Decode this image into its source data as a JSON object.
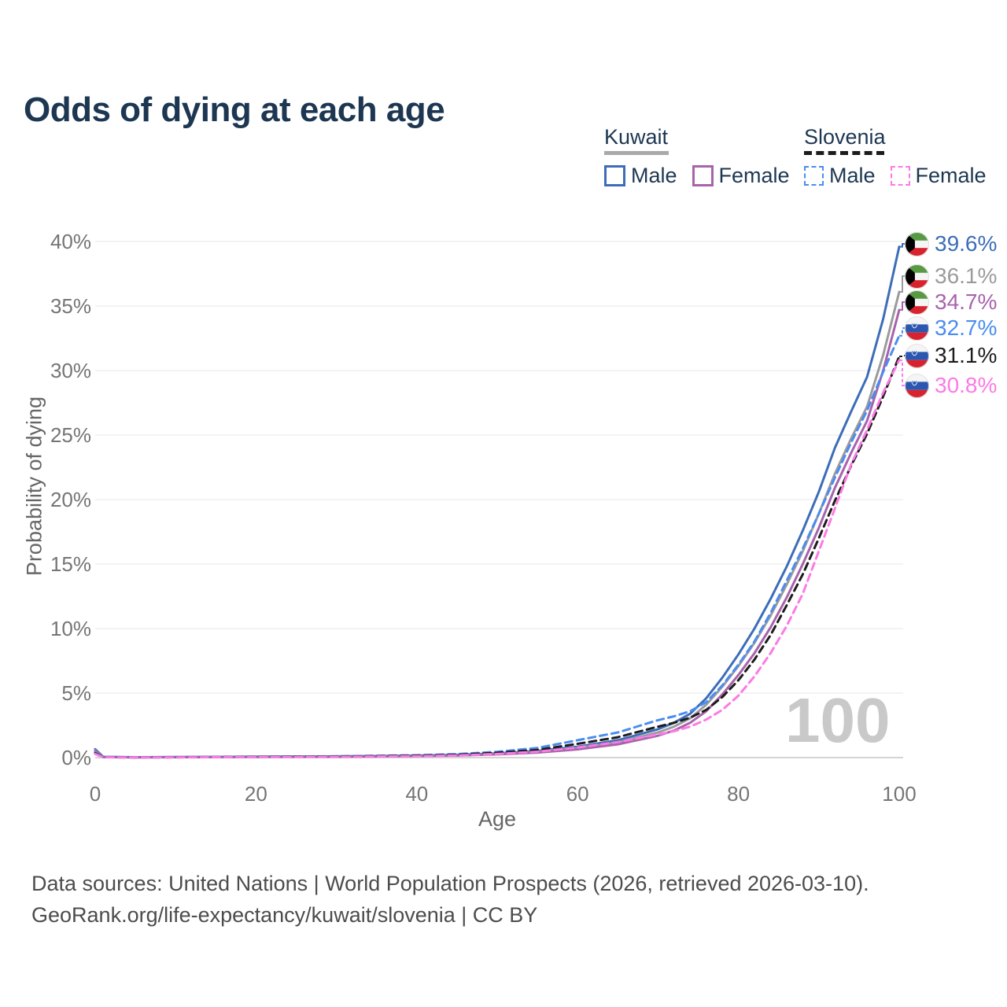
{
  "title": "Odds of dying at each age",
  "watermark": "100",
  "legend": {
    "groups": [
      {
        "country": "Kuwait",
        "line_style": "solid",
        "underline_color": "#a9a9a9",
        "items": [
          {
            "label": "Male",
            "color": "#3d6db8"
          },
          {
            "label": "Female",
            "color": "#a763ab"
          }
        ]
      },
      {
        "country": "Slovenia",
        "line_style": "dashed",
        "underline_color": "#1c1c1c",
        "items": [
          {
            "label": "Male",
            "color": "#4a8cf0"
          },
          {
            "label": "Female",
            "color": "#fc7ae4"
          }
        ]
      }
    ]
  },
  "chart_data": {
    "type": "line",
    "title": "Odds of dying at each age",
    "xlabel": "Age",
    "ylabel": "Probability of dying",
    "xlim": [
      0,
      100
    ],
    "ylim": [
      0,
      40
    ],
    "grid": "horizontal",
    "xticks": [
      {
        "value": 0,
        "label": "0"
      },
      {
        "value": 20,
        "label": "20"
      },
      {
        "value": 40,
        "label": "40"
      },
      {
        "value": 60,
        "label": "60"
      },
      {
        "value": 80,
        "label": "80"
      },
      {
        "value": 100,
        "label": "100"
      }
    ],
    "yticks": [
      {
        "value": 0,
        "label": "0%"
      },
      {
        "value": 5,
        "label": "5%"
      },
      {
        "value": 10,
        "label": "10%"
      },
      {
        "value": 15,
        "label": "15%"
      },
      {
        "value": 20,
        "label": "20%"
      },
      {
        "value": 25,
        "label": "25%"
      },
      {
        "value": 30,
        "label": "30%"
      },
      {
        "value": 35,
        "label": "35%"
      },
      {
        "value": 40,
        "label": "40%"
      }
    ],
    "x": [
      0,
      1,
      5,
      10,
      20,
      30,
      40,
      45,
      50,
      55,
      60,
      65,
      70,
      72,
      74,
      76,
      78,
      80,
      82,
      84,
      86,
      88,
      90,
      92,
      94,
      96,
      98,
      100
    ],
    "series": [
      {
        "id": "kuwait-male",
        "name": "Kuwait Male",
        "country": "Kuwait",
        "sex": "Male",
        "color": "#3d6db8",
        "dashed": false,
        "flag": "kuwait",
        "end_label": "39.6%",
        "end_value": 39.6,
        "values": [
          0.65,
          0.06,
          0.03,
          0.04,
          0.08,
          0.1,
          0.16,
          0.22,
          0.33,
          0.52,
          0.85,
          1.35,
          2.2,
          2.7,
          3.4,
          4.6,
          6.2,
          8.0,
          10.0,
          12.3,
          14.8,
          17.6,
          20.6,
          24.0,
          26.8,
          29.5,
          34.0,
          39.6
        ]
      },
      {
        "id": "kuwait-both",
        "name": "Kuwait",
        "country": "Kuwait",
        "sex": "Both",
        "color": "#9b9b9b",
        "dashed": false,
        "flag": "kuwait",
        "end_label": "36.1%",
        "end_value": 36.1,
        "values": [
          0.55,
          0.05,
          0.025,
          0.035,
          0.065,
          0.085,
          0.14,
          0.19,
          0.29,
          0.45,
          0.74,
          1.18,
          1.95,
          2.4,
          3.05,
          4.1,
          5.5,
          7.1,
          8.9,
          11.0,
          13.4,
          16.0,
          18.9,
          22.0,
          24.7,
          27.2,
          31.2,
          36.1
        ]
      },
      {
        "id": "kuwait-female",
        "name": "Kuwait Female",
        "country": "Kuwait",
        "sex": "Female",
        "color": "#a763ab",
        "dashed": false,
        "flag": "kuwait",
        "end_label": "34.7%",
        "end_value": 34.7,
        "values": [
          0.5,
          0.045,
          0.02,
          0.03,
          0.055,
          0.07,
          0.12,
          0.16,
          0.25,
          0.39,
          0.64,
          1.03,
          1.7,
          2.1,
          2.7,
          3.6,
          4.9,
          6.4,
          8.1,
          10.1,
          12.4,
          15.0,
          17.8,
          20.9,
          23.6,
          26.1,
          30.0,
          34.7
        ]
      },
      {
        "id": "slovenia-male",
        "name": "Slovenia Male",
        "country": "Slovenia",
        "sex": "Male",
        "color": "#4a8cf0",
        "dashed": true,
        "flag": "slovenia",
        "end_label": "32.7%",
        "end_value": 32.7,
        "values": [
          0.4,
          0.035,
          0.02,
          0.03,
          0.07,
          0.1,
          0.18,
          0.27,
          0.45,
          0.75,
          1.35,
          1.95,
          2.9,
          3.2,
          3.6,
          4.3,
          5.6,
          7.2,
          9.0,
          11.2,
          13.7,
          16.2,
          18.9,
          21.7,
          24.4,
          26.9,
          29.9,
          32.7
        ]
      },
      {
        "id": "slovenia-both",
        "name": "Slovenia",
        "country": "Slovenia",
        "sex": "Both",
        "color": "#1c1c1c",
        "dashed": true,
        "flag": "slovenia",
        "end_label": "31.1%",
        "end_value": 31.1,
        "values": [
          0.33,
          0.03,
          0.016,
          0.025,
          0.055,
          0.08,
          0.15,
          0.22,
          0.37,
          0.6,
          1.07,
          1.58,
          2.4,
          2.7,
          3.1,
          3.7,
          4.7,
          6.0,
          7.6,
          9.5,
          11.8,
          14.2,
          17.0,
          19.9,
          22.6,
          25.1,
          28.0,
          31.1
        ]
      },
      {
        "id": "slovenia-female",
        "name": "Slovenia Female",
        "country": "Slovenia",
        "sex": "Female",
        "color": "#fc7ae4",
        "dashed": true,
        "flag": "slovenia",
        "end_label": "30.8%",
        "end_value": 30.8,
        "values": [
          0.28,
          0.026,
          0.013,
          0.02,
          0.04,
          0.055,
          0.11,
          0.17,
          0.28,
          0.46,
          0.78,
          1.2,
          1.8,
          2.05,
          2.4,
          2.95,
          3.7,
          4.8,
          6.3,
          8.1,
          10.2,
          12.7,
          16.0,
          19.3,
          22.7,
          25.4,
          28.3,
          30.8
        ]
      }
    ]
  },
  "footer": {
    "line1": "Data sources: United Nations | World Population Prospects (2026, retrieved 2026-03-10).",
    "line2": "GeoRank.org/life-expectancy/kuwait/slovenia | CC BY"
  }
}
